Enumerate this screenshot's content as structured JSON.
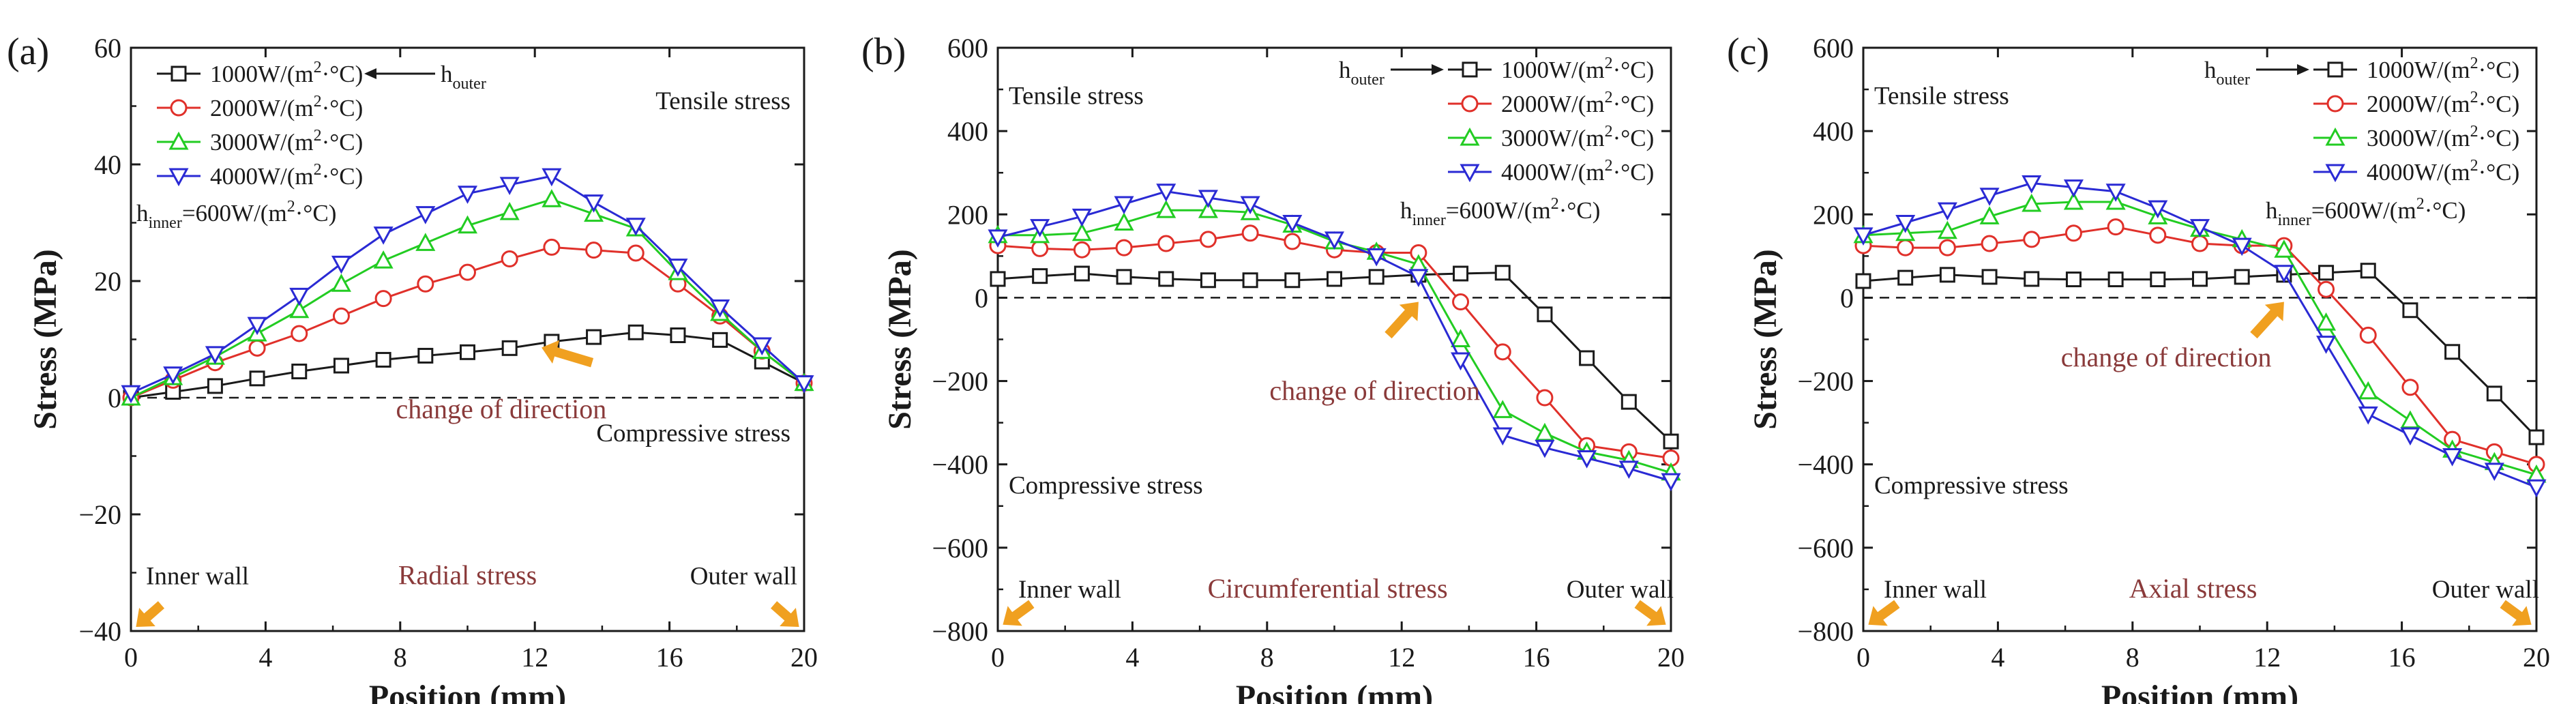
{
  "figure_title": "",
  "colors": {
    "series_1000": "#1a1a1a",
    "series_2000": "#e0302a",
    "series_3000": "#22cc22",
    "series_4000": "#2a2ad4",
    "annotation_text": "#8a3a3a",
    "arrow": "#f0a020",
    "axis": "#1a1a1a",
    "zero_line": "#1a1a1a"
  },
  "chart_data": [
    {
      "type": "line",
      "panel_label": "(a)",
      "xlabel": "Position (mm)",
      "ylabel": "Stress (MPa)",
      "xlim": [
        0,
        20
      ],
      "ylim": [
        -40,
        60
      ],
      "xticks": [
        0,
        4,
        8,
        12,
        16,
        20
      ],
      "yticks": [
        -40,
        -20,
        0,
        20,
        40,
        60
      ],
      "legend_position": "top-left",
      "legend": [
        "1000W/(m²·°C)",
        "2000W/(m²·°C)",
        "3000W/(m²·°C)",
        "4000W/(m²·°C)"
      ],
      "legend_parts": [
        {
          "main": "1000W/(m",
          "sup": "2",
          "rest": "·°C)"
        },
        {
          "main": "2000W/(m",
          "sup": "2",
          "rest": "·°C)"
        },
        {
          "main": "3000W/(m",
          "sup": "2",
          "rest": "·°C)"
        },
        {
          "main": "4000W/(m",
          "sup": "2",
          "rest": "·°C)"
        }
      ],
      "h_outer": {
        "main": "h",
        "sub": "outer"
      },
      "h_inner": {
        "main": "h",
        "sub": "inner",
        "rest": "=600W/(m",
        "sup": "2",
        "tail": "·°C)"
      },
      "tensile_label": "Tensile stress",
      "compressive_label": "Compressive stress",
      "change_label": "change of direction",
      "stress_label": "Radial stress",
      "inner_wall_label": "Inner wall",
      "outer_wall_label": "Outer wall",
      "x": [
        0,
        1.25,
        2.5,
        3.75,
        5,
        6.25,
        7.5,
        8.75,
        10,
        11.25,
        12.5,
        13.75,
        15,
        16.25,
        17.5,
        18.75,
        20
      ],
      "series": [
        {
          "name": "1000W/(m²·°C)",
          "marker": "square",
          "values": [
            0,
            1,
            2,
            3.3,
            4.5,
            5.5,
            6.5,
            7.2,
            7.8,
            8.5,
            9.6,
            10.4,
            11.2,
            10.7,
            9.9,
            6.2,
            2.5
          ]
        },
        {
          "name": "2000W/(m²·°C)",
          "marker": "circle",
          "values": [
            0,
            3,
            6,
            8.5,
            11,
            14,
            17,
            19.5,
            21.5,
            23.8,
            25.8,
            25.3,
            24.8,
            19.5,
            14.0,
            8.0,
            2.5
          ]
        },
        {
          "name": "3000W/(m²·°C)",
          "marker": "triangle-up",
          "values": [
            0,
            3.5,
            7,
            11,
            15,
            19.5,
            23.5,
            26.5,
            29.5,
            31.8,
            34.0,
            31.5,
            29.0,
            21.5,
            14.5,
            8.0,
            2.5
          ]
        },
        {
          "name": "4000W/(m²·°C)",
          "marker": "triangle-down",
          "values": [
            0.8,
            4,
            7.5,
            12.5,
            17.5,
            23,
            28,
            31.5,
            35,
            36.5,
            38.0,
            33.5,
            29.5,
            22.5,
            15.5,
            9.0,
            2.5
          ]
        }
      ]
    },
    {
      "type": "line",
      "panel_label": "(b)",
      "xlabel": "Position (mm)",
      "ylabel": "Stress (MPa)",
      "xlim": [
        0,
        20
      ],
      "ylim": [
        -800,
        600
      ],
      "xticks": [
        0,
        4,
        8,
        12,
        16,
        20
      ],
      "yticks": [
        -800,
        -600,
        -400,
        -200,
        0,
        200,
        400,
        600
      ],
      "legend_position": "top-right",
      "legend": [
        "1000W/(m²·°C)",
        "2000W/(m²·°C)",
        "3000W/(m²·°C)",
        "4000W/(m²·°C)"
      ],
      "legend_parts": [
        {
          "main": "1000W/(m",
          "sup": "2",
          "rest": "·°C)"
        },
        {
          "main": "2000W/(m",
          "sup": "2",
          "rest": "·°C)"
        },
        {
          "main": "3000W/(m",
          "sup": "2",
          "rest": "·°C)"
        },
        {
          "main": "4000W/(m",
          "sup": "2",
          "rest": "·°C)"
        }
      ],
      "h_outer": {
        "main": "h",
        "sub": "outer"
      },
      "h_inner": {
        "main": "h",
        "sub": "inner",
        "rest": "=600W/(m",
        "sup": "2",
        "tail": "·°C)"
      },
      "tensile_label": "Tensile stress",
      "compressive_label": "Compressive stress",
      "change_label": "change of direction",
      "stress_label": "Circumferential stress",
      "inner_wall_label": "Inner wall",
      "outer_wall_label": "Outer wall",
      "x": [
        0,
        1.25,
        2.5,
        3.75,
        5,
        6.25,
        7.5,
        8.75,
        10,
        11.25,
        12.5,
        13.75,
        15,
        16.25,
        17.5,
        18.75,
        20
      ],
      "series": [
        {
          "name": "1000W/(m²·°C)",
          "marker": "square",
          "values": [
            45,
            52,
            58,
            50,
            45,
            42,
            42,
            42,
            45,
            50,
            55,
            58,
            60,
            -40,
            -145,
            -250,
            -345
          ]
        },
        {
          "name": "2000W/(m²·°C)",
          "marker": "circle",
          "values": [
            125,
            118,
            115,
            120,
            130,
            140,
            155,
            135,
            115,
            108,
            108,
            -10,
            -130,
            -240,
            -355,
            -370,
            -385
          ]
        },
        {
          "name": "3000W/(m²·°C)",
          "marker": "triangle-up",
          "values": [
            150,
            150,
            155,
            180,
            210,
            210,
            205,
            175,
            135,
            110,
            80,
            -100,
            -270,
            -325,
            -370,
            -390,
            -420
          ]
        },
        {
          "name": "4000W/(m²·°C)",
          "marker": "triangle-down",
          "values": [
            145,
            170,
            195,
            225,
            255,
            240,
            225,
            180,
            140,
            100,
            50,
            -150,
            -330,
            -360,
            -385,
            -410,
            -440
          ]
        }
      ]
    },
    {
      "type": "line",
      "panel_label": "(c)",
      "xlabel": "Position (mm)",
      "ylabel": "Stress (MPa)",
      "xlim": [
        0,
        20
      ],
      "ylim": [
        -800,
        600
      ],
      "xticks": [
        0,
        4,
        8,
        12,
        16,
        20
      ],
      "yticks": [
        -800,
        -600,
        -400,
        -200,
        0,
        200,
        400,
        600
      ],
      "legend_position": "top-right",
      "legend": [
        "1000W/(m²·°C)",
        "2000W/(m²·°C)",
        "3000W/(m²·°C)",
        "4000W/(m²·°C)"
      ],
      "legend_parts": [
        {
          "main": "1000W/(m",
          "sup": "2",
          "rest": "·°C)"
        },
        {
          "main": "2000W/(m",
          "sup": "2",
          "rest": "·°C)"
        },
        {
          "main": "3000W/(m",
          "sup": "2",
          "rest": "·°C)"
        },
        {
          "main": "4000W/(m",
          "sup": "2",
          "rest": "·°C)"
        }
      ],
      "h_outer": {
        "main": "h",
        "sub": "outer"
      },
      "h_inner": {
        "main": "h",
        "sub": "inner",
        "rest": "=600W/(m",
        "sup": "2",
        "tail": "·°C)"
      },
      "tensile_label": "Tensile stress",
      "compressive_label": "Compressive stress",
      "change_label": "change of direction",
      "stress_label": "Axial stress",
      "inner_wall_label": "Inner wall",
      "outer_wall_label": "Outer wall",
      "x": [
        0,
        1.25,
        2.5,
        3.75,
        5,
        6.25,
        7.5,
        8.75,
        10,
        11.25,
        12.5,
        13.75,
        15,
        16.25,
        17.5,
        18.75,
        20
      ],
      "series": [
        {
          "name": "1000W/(m²·°C)",
          "marker": "square",
          "values": [
            40,
            48,
            55,
            50,
            45,
            44,
            44,
            44,
            45,
            50,
            55,
            60,
            65,
            -30,
            -130,
            -230,
            -335
          ]
        },
        {
          "name": "2000W/(m²·°C)",
          "marker": "circle",
          "values": [
            125,
            120,
            120,
            130,
            140,
            155,
            170,
            150,
            130,
            125,
            125,
            20,
            -90,
            -215,
            -340,
            -370,
            -400
          ]
        },
        {
          "name": "3000W/(m²·°C)",
          "marker": "triangle-up",
          "values": [
            150,
            155,
            160,
            195,
            225,
            230,
            230,
            195,
            165,
            140,
            115,
            -60,
            -225,
            -295,
            -365,
            -395,
            -425
          ]
        },
        {
          "name": "4000W/(m²·°C)",
          "marker": "triangle-down",
          "values": [
            150,
            180,
            210,
            245,
            275,
            265,
            255,
            215,
            170,
            125,
            60,
            -110,
            -280,
            -330,
            -380,
            -415,
            -455
          ]
        }
      ]
    }
  ]
}
